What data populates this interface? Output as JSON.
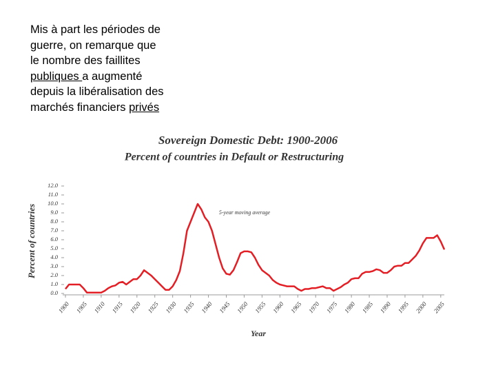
{
  "text": {
    "lines": [
      [
        {
          "text": "Mis à part les périodes de",
          "underline": false
        }
      ],
      [
        {
          "text": "guerre, on remarque que",
          "underline": false
        }
      ],
      [
        {
          "text": "le nombre des faillites",
          "underline": false
        }
      ],
      [
        {
          "text": "publiques ",
          "underline": true
        },
        {
          "text": "a augmenté",
          "underline": false
        }
      ],
      [
        {
          "text": "depuis la libéralisation des",
          "underline": false
        }
      ],
      [
        {
          "text": "marchés financiers ",
          "underline": false
        },
        {
          "text": "privés",
          "underline": true
        }
      ]
    ]
  },
  "chart_data": {
    "type": "line",
    "title": "Sovereign Domestic Debt: 1900-2006",
    "subtitle": "Percent of countries in Default or Restructuring",
    "annotation": "5-year moving average",
    "xlabel": "Year",
    "ylabel": "Percent of countries",
    "x": [
      1900,
      1901,
      1902,
      1903,
      1904,
      1905,
      1906,
      1907,
      1908,
      1909,
      1910,
      1911,
      1912,
      1913,
      1914,
      1915,
      1916,
      1917,
      1918,
      1919,
      1920,
      1921,
      1922,
      1923,
      1924,
      1925,
      1926,
      1927,
      1928,
      1929,
      1930,
      1931,
      1932,
      1933,
      1934,
      1935,
      1936,
      1937,
      1938,
      1939,
      1940,
      1941,
      1942,
      1943,
      1944,
      1945,
      1946,
      1947,
      1948,
      1949,
      1950,
      1951,
      1952,
      1953,
      1954,
      1955,
      1956,
      1957,
      1958,
      1959,
      1960,
      1961,
      1962,
      1963,
      1964,
      1965,
      1966,
      1967,
      1968,
      1969,
      1970,
      1971,
      1972,
      1973,
      1974,
      1975,
      1976,
      1977,
      1978,
      1979,
      1980,
      1981,
      1982,
      1983,
      1984,
      1985,
      1986,
      1987,
      1988,
      1989,
      1990,
      1991,
      1992,
      1993,
      1994,
      1995,
      1996,
      1997,
      1998,
      1999,
      2000,
      2001,
      2002,
      2003,
      2004,
      2005,
      2006
    ],
    "series": [
      {
        "name": "5-year moving average",
        "color": "#e31e24",
        "values": [
          0.5,
          1.0,
          1.0,
          1.0,
          1.0,
          0.6,
          0.1,
          0.1,
          0.1,
          0.1,
          0.1,
          0.3,
          0.6,
          0.8,
          0.9,
          1.2,
          1.3,
          1.0,
          1.3,
          1.6,
          1.6,
          2.0,
          2.6,
          2.3,
          2.0,
          1.6,
          1.2,
          0.8,
          0.4,
          0.4,
          0.8,
          1.5,
          2.5,
          4.5,
          7.0,
          8.0,
          9.0,
          10.0,
          9.4,
          8.5,
          8.0,
          7.0,
          5.5,
          4.0,
          2.8,
          2.2,
          2.1,
          2.6,
          3.5,
          4.5,
          4.7,
          4.7,
          4.6,
          4.0,
          3.2,
          2.6,
          2.3,
          2.0,
          1.5,
          1.2,
          1.0,
          0.9,
          0.8,
          0.8,
          0.8,
          0.5,
          0.3,
          0.5,
          0.5,
          0.6,
          0.6,
          0.7,
          0.8,
          0.6,
          0.6,
          0.3,
          0.5,
          0.7,
          1.0,
          1.2,
          1.6,
          1.7,
          1.7,
          2.2,
          2.4,
          2.4,
          2.5,
          2.7,
          2.6,
          2.3,
          2.3,
          2.6,
          3.0,
          3.1,
          3.1,
          3.4,
          3.4,
          3.8,
          4.2,
          4.8,
          5.6,
          6.2,
          6.2,
          6.2,
          6.5,
          5.8,
          4.9
        ]
      }
    ],
    "xlim": [
      1900,
      2006
    ],
    "xticks": [
      1900,
      1905,
      1910,
      1915,
      1920,
      1925,
      1930,
      1935,
      1940,
      1945,
      1950,
      1955,
      1960,
      1965,
      1970,
      1975,
      1980,
      1985,
      1990,
      1995,
      2000,
      2005
    ],
    "ylim": [
      0,
      12
    ],
    "yticks": [
      {
        "value": 0,
        "label": "0.0"
      },
      {
        "value": 1,
        "label": "1.0"
      },
      {
        "value": 2,
        "label": "2.0"
      },
      {
        "value": 3,
        "label": "3.0"
      },
      {
        "value": 4,
        "label": "4.0"
      },
      {
        "value": 5,
        "label": "5.0"
      },
      {
        "value": 6,
        "label": "6.0"
      },
      {
        "value": 7,
        "label": "7.0"
      },
      {
        "value": 8,
        "label": "8.0"
      },
      {
        "value": 9,
        "label": "9.0"
      },
      {
        "value": 10,
        "label": "10.0"
      },
      {
        "value": 11,
        "label": "11.0"
      },
      {
        "value": 12,
        "label": "12.0"
      }
    ],
    "grid": false
  }
}
